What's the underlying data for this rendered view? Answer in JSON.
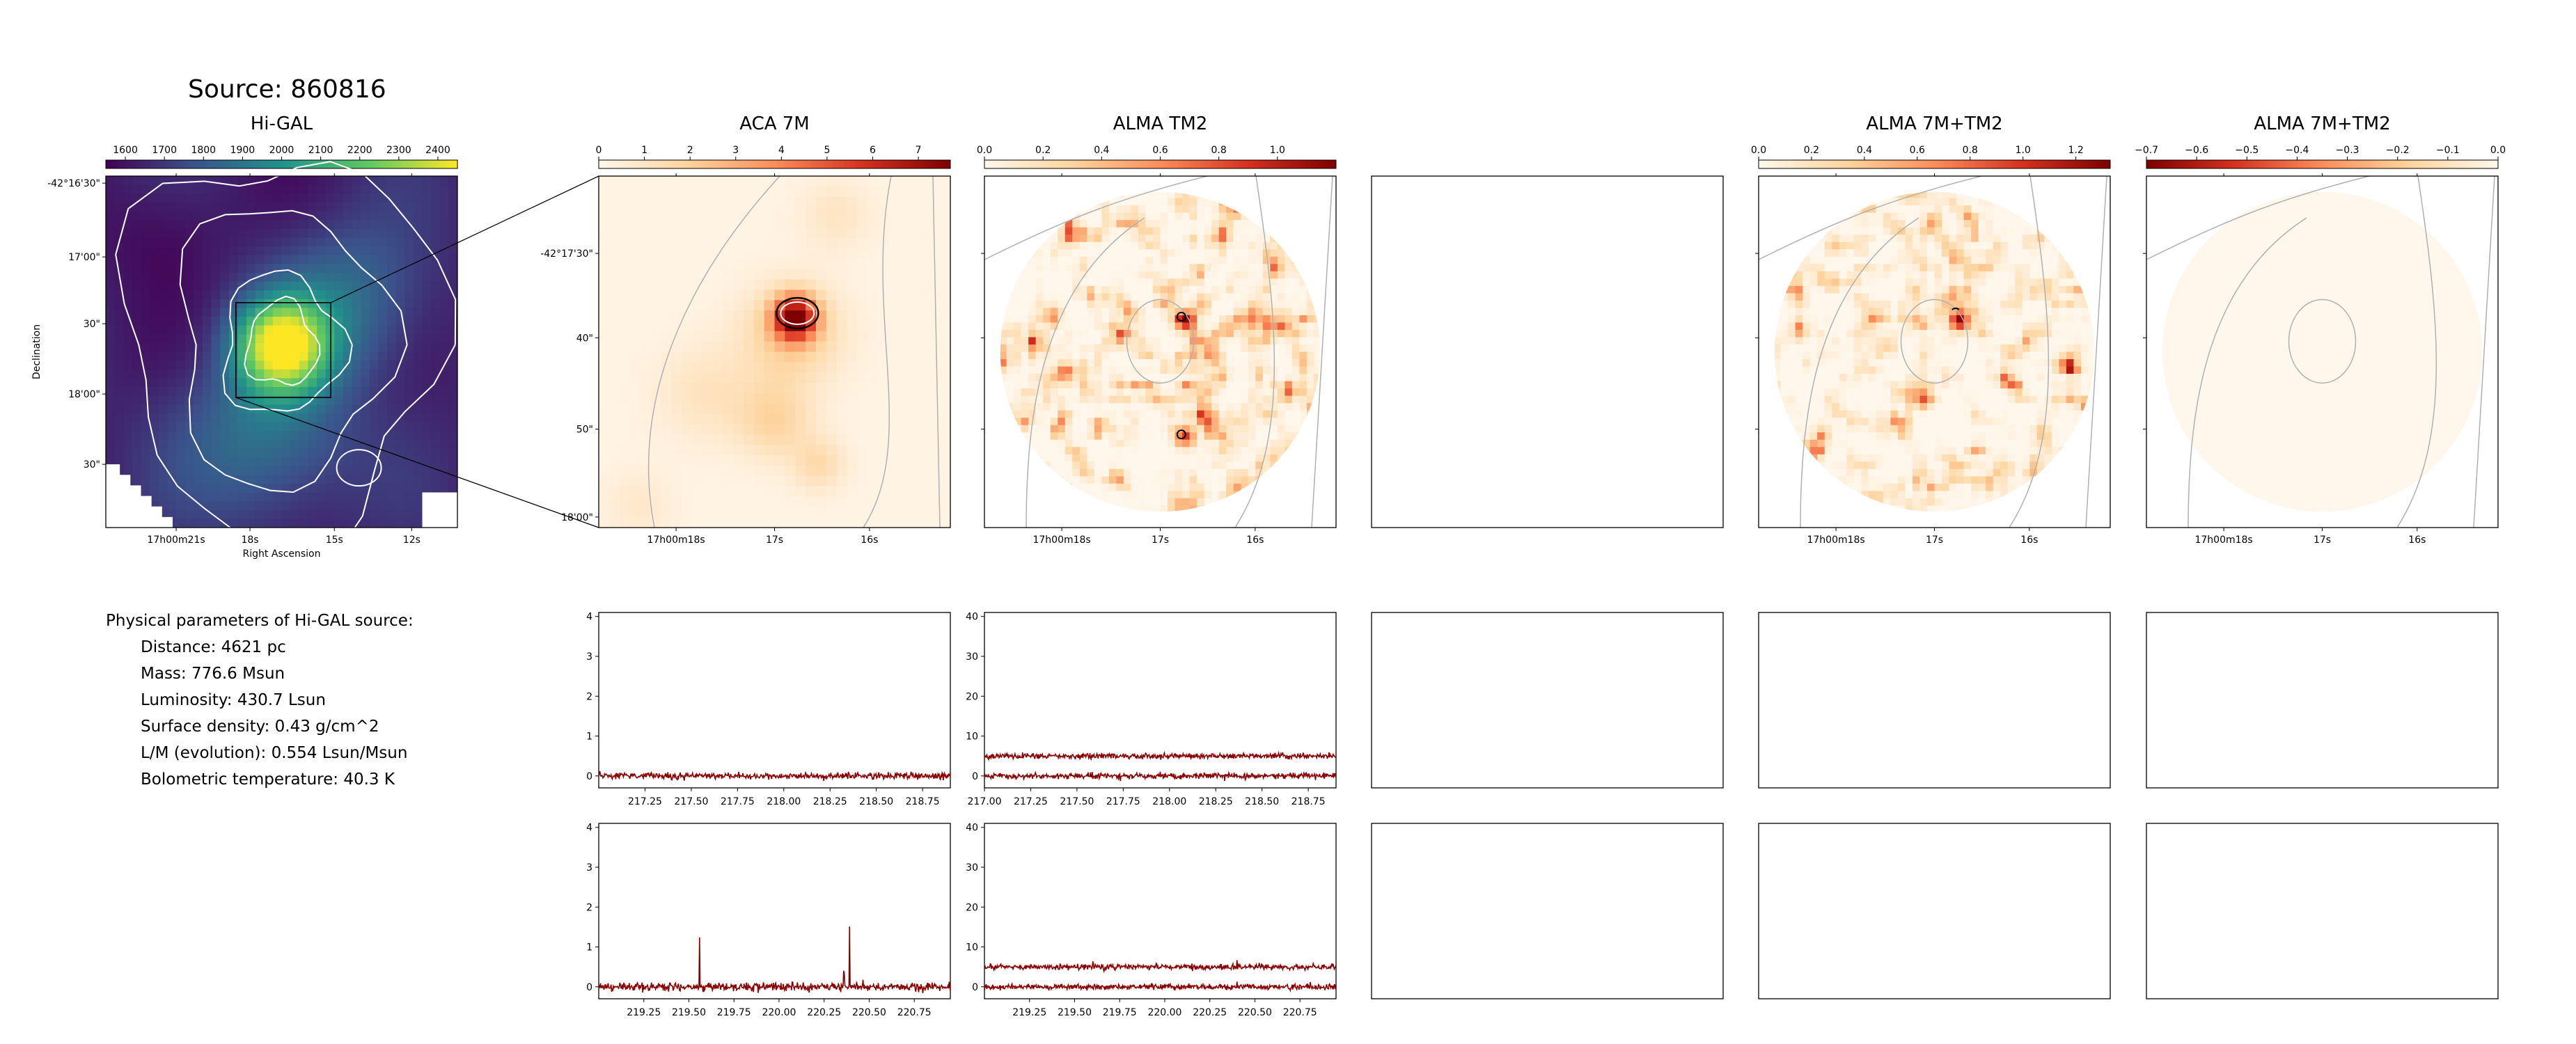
{
  "source_title": "Source: 860816",
  "parameters": {
    "header": "Physical parameters of Hi-GAL source:",
    "lines": [
      "Distance: 4621 pc",
      "Mass: 776.6 Msun",
      "Luminosity: 430.7 Lsun",
      "Surface density: 0.43 g/cm^2",
      "L/M (evolution): 0.554 Lsun/Msun",
      "Bolometric temperature: 40.3 K"
    ]
  },
  "colors": {
    "viridis": [
      "#440154",
      "#3b528b",
      "#21918c",
      "#5ec962",
      "#fde725"
    ],
    "orrd": [
      "#fff7ec",
      "#fdd49e",
      "#fc8d59",
      "#d7301f",
      "#7f0000"
    ],
    "spectrum_line": "#8b0000",
    "contour_gray": "#b0b0b0",
    "contour_white": "#ffffff"
  },
  "chart_data": [
    {
      "id": "higal",
      "type": "heatmap",
      "title": "Hi-GAL",
      "colormap": "viridis",
      "colorbar_ticks": [
        "1600",
        "1700",
        "1800",
        "1900",
        "2000",
        "2100",
        "2200",
        "2300",
        "2400"
      ],
      "colorbar_range": [
        1550,
        2450
      ],
      "xlabel": "Right Ascension",
      "ylabel": "Declination",
      "x_ticks": [
        "17h00m21s",
        "18s",
        "15s",
        "12s"
      ],
      "y_ticks": [
        "-42°16'30\"",
        "17'00\"",
        "30\"",
        "18'00\"",
        "30\""
      ],
      "zoom_box": true
    },
    {
      "id": "aca7m",
      "type": "heatmap",
      "title": "ACA 7M",
      "colormap": "orrd",
      "colorbar_ticks": [
        "0",
        "1",
        "2",
        "3",
        "4",
        "5",
        "6",
        "7"
      ],
      "colorbar_range": [
        0,
        7.7
      ],
      "x_ticks": [
        "17h00m18s",
        "17s",
        "16s"
      ],
      "y_ticks": [
        "-42°17'30\"",
        "40\"",
        "50\"",
        "18'00\""
      ]
    },
    {
      "id": "tm2",
      "type": "heatmap",
      "title": "ALMA TM2",
      "colormap": "orrd",
      "colorbar_ticks": [
        "0.0",
        "0.2",
        "0.4",
        "0.6",
        "0.8",
        "1.0"
      ],
      "colorbar_range": [
        0,
        1.2
      ],
      "x_ticks": [
        "17h00m18s",
        "17s",
        "16s"
      ]
    },
    {
      "id": "tm2_7m",
      "type": "heatmap",
      "title": "ALMA 7M+TM2",
      "colormap": "orrd",
      "colorbar_ticks": [
        "0.0",
        "0.2",
        "0.4",
        "0.6",
        "0.8",
        "1.0",
        "1.2"
      ],
      "colorbar_range": [
        0,
        1.33
      ],
      "x_ticks": [
        "17h00m18s",
        "17s",
        "16s"
      ]
    },
    {
      "id": "tm2_7m_neg",
      "type": "heatmap",
      "title": "ALMA 7M+TM2",
      "colormap": "orrd_r",
      "colorbar_ticks": [
        "−0.7",
        "−0.6",
        "−0.5",
        "−0.4",
        "−0.3",
        "−0.2",
        "−0.1",
        "0.0"
      ],
      "colorbar_range": [
        -0.7,
        0
      ],
      "x_ticks": [
        "17h00m18s",
        "17s",
        "16s"
      ]
    },
    {
      "id": "spec_aca_low",
      "type": "line",
      "x_range": [
        217.0,
        218.9
      ],
      "x_ticks": [
        "217.25",
        "217.50",
        "217.75",
        "218.00",
        "218.25",
        "218.50",
        "218.75"
      ],
      "y_range": [
        -0.3,
        4.1
      ],
      "y_ticks": [
        "0",
        "1",
        "2",
        "3",
        "4"
      ],
      "series": [
        {
          "offset": 0,
          "noise": 0.04,
          "peaks": []
        }
      ]
    },
    {
      "id": "spec_tm2_low",
      "type": "line",
      "x_range": [
        217.0,
        218.9
      ],
      "x_ticks": [
        "217.00",
        "217.25",
        "217.50",
        "217.75",
        "218.00",
        "218.25",
        "218.50",
        "218.75"
      ],
      "y_range": [
        -3,
        41
      ],
      "y_ticks": [
        "0",
        "10",
        "20",
        "30",
        "40"
      ],
      "series": [
        {
          "offset": 0,
          "noise": 0.35,
          "peaks": []
        },
        {
          "offset": 5,
          "noise": 0.35,
          "peaks": []
        }
      ]
    },
    {
      "id": "spec_aca_high",
      "type": "line",
      "x_range": [
        219.0,
        220.95
      ],
      "x_ticks": [
        "219.25",
        "219.50",
        "219.75",
        "220.00",
        "220.25",
        "220.50",
        "220.75"
      ],
      "y_range": [
        -0.3,
        4.1
      ],
      "y_ticks": [
        "0",
        "1",
        "2",
        "3",
        "4"
      ],
      "series": [
        {
          "offset": 0,
          "noise": 0.05,
          "peaks": [
            {
              "x": 219.56,
              "h": 1.2
            },
            {
              "x": 220.39,
              "h": 1.55
            },
            {
              "x": 220.36,
              "h": 0.35
            }
          ]
        }
      ]
    },
    {
      "id": "spec_tm2_high",
      "type": "line",
      "x_range": [
        219.0,
        220.95
      ],
      "x_ticks": [
        "219.25",
        "219.50",
        "219.75",
        "220.00",
        "220.25",
        "220.50",
        "220.75"
      ],
      "y_range": [
        -3,
        41
      ],
      "y_ticks": [
        "0",
        "10",
        "20",
        "30",
        "40"
      ],
      "series": [
        {
          "offset": 0,
          "noise": 0.35,
          "peaks": [
            {
              "x": 220.4,
              "h": 1.5
            }
          ]
        },
        {
          "offset": 5,
          "noise": 0.35,
          "peaks": [
            {
              "x": 220.4,
              "h": 1.5
            },
            {
              "x": 219.6,
              "h": 0.6
            }
          ]
        }
      ]
    }
  ]
}
